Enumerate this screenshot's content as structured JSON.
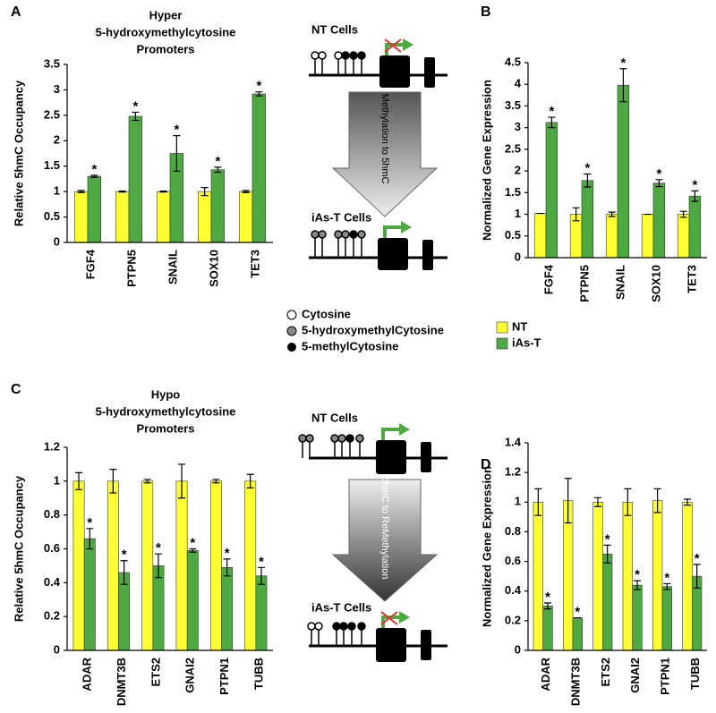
{
  "chart_data": [
    {
      "type": "bar",
      "panel": "A",
      "title": [
        "Hyper",
        "5-hydroxymethylcytosine",
        "Promoters"
      ],
      "ylabel": "Relative 5hmC Occupancy",
      "categories": [
        "FGF4",
        "PTPN5",
        "SNAIL",
        "SOX10",
        "TET3"
      ],
      "series": [
        {
          "color": "#ffff33",
          "values": [
            1.0,
            1.0,
            1.0,
            1.0,
            1.0
          ],
          "errors": [
            0.02,
            0.01,
            0.01,
            0.08,
            0.02
          ]
        },
        {
          "color": "#4ea943",
          "values": [
            1.3,
            2.48,
            1.75,
            1.43,
            2.92
          ],
          "errors": [
            0.02,
            0.08,
            0.35,
            0.05,
            0.04
          ]
        }
      ],
      "significance": [
        "*",
        "*",
        "*",
        "*",
        "*"
      ],
      "ylim": [
        0,
        3.5
      ],
      "yticks": [
        0,
        0.5,
        1,
        1.5,
        2,
        2.5,
        3,
        3.5
      ]
    },
    {
      "type": "bar",
      "panel": "B",
      "ylabel": "Normalized Gene Expression",
      "categories": [
        "FGF4",
        "PTPN5",
        "SNAIL",
        "SOX10",
        "TET3"
      ],
      "series": [
        {
          "name": "NT",
          "color": "#ffff33",
          "values": [
            1.02,
            1.0,
            1.0,
            1.0,
            1.0
          ],
          "errors": [
            0,
            0.15,
            0.05,
            0,
            0.07
          ]
        },
        {
          "name": "iAs-T",
          "color": "#4ea943",
          "values": [
            3.12,
            1.78,
            3.98,
            1.72,
            1.42
          ],
          "errors": [
            0.12,
            0.15,
            0.38,
            0.08,
            0.12
          ]
        }
      ],
      "significance": [
        "*",
        "*",
        "*",
        "*",
        "*"
      ],
      "ylim": [
        0,
        4.5
      ],
      "yticks": [
        0,
        0.5,
        1,
        1.5,
        2,
        2.5,
        3,
        3.5,
        4,
        4.5
      ]
    },
    {
      "type": "bar",
      "panel": "C",
      "title": [
        "Hypo",
        "5-hydroxymethylcytosine",
        "Promoters"
      ],
      "ylabel": "Relative 5hmC Occupancy",
      "categories": [
        "ADAR",
        "DNMT3B",
        "ETS2",
        "GNAI2",
        "PTPN1",
        "TUBB"
      ],
      "series": [
        {
          "color": "#ffff33",
          "values": [
            1.0,
            1.0,
            1.0,
            1.0,
            1.0,
            1.0
          ],
          "errors": [
            0.05,
            0.07,
            0.01,
            0.1,
            0.01,
            0.04
          ]
        },
        {
          "color": "#4ea943",
          "values": [
            0.66,
            0.46,
            0.5,
            0.59,
            0.49,
            0.44
          ],
          "errors": [
            0.06,
            0.07,
            0.07,
            0.01,
            0.05,
            0.05
          ]
        }
      ],
      "significance": [
        "*",
        "*",
        "*",
        "*",
        "*",
        "*"
      ],
      "ylim": [
        0,
        1.2
      ],
      "yticks": [
        0,
        0.2,
        0.4,
        0.6,
        0.8,
        1,
        1.2
      ]
    },
    {
      "type": "bar",
      "panel": "D",
      "ylabel": "Normalized Gene Expression",
      "categories": [
        "ADAR",
        "DNMT3B",
        "ETS2",
        "GNAI2",
        "PTPN1",
        "TUBB"
      ],
      "series": [
        {
          "color": "#ffff33",
          "values": [
            1.0,
            1.01,
            1.0,
            1.0,
            1.01,
            1.0
          ],
          "errors": [
            0.09,
            0.15,
            0.03,
            0.09,
            0.08,
            0.02
          ]
        },
        {
          "color": "#4ea943",
          "values": [
            0.3,
            0.22,
            0.65,
            0.44,
            0.43,
            0.5
          ],
          "errors": [
            0.02,
            0,
            0.06,
            0.03,
            0.02,
            0.08
          ]
        }
      ],
      "significance": [
        "*",
        "*",
        "*",
        "*",
        "*",
        "*"
      ],
      "ylim": [
        0,
        1.4
      ],
      "yticks": [
        0,
        0.2,
        0.4,
        0.6,
        0.8,
        1,
        1.2,
        1.4
      ]
    }
  ],
  "diagram": {
    "upper": {
      "before": "NT Cells",
      "arrow": "Methylation to 5hmC",
      "after": "iAs-T Cells"
    },
    "lower": {
      "before": "NT Cells",
      "arrow": "5hmC to ReMethylation",
      "after": "iAs-T Cells"
    },
    "key": [
      "Cytosine",
      "5-hydroxymethylCytosine",
      "5-methylCytosine"
    ]
  }
}
